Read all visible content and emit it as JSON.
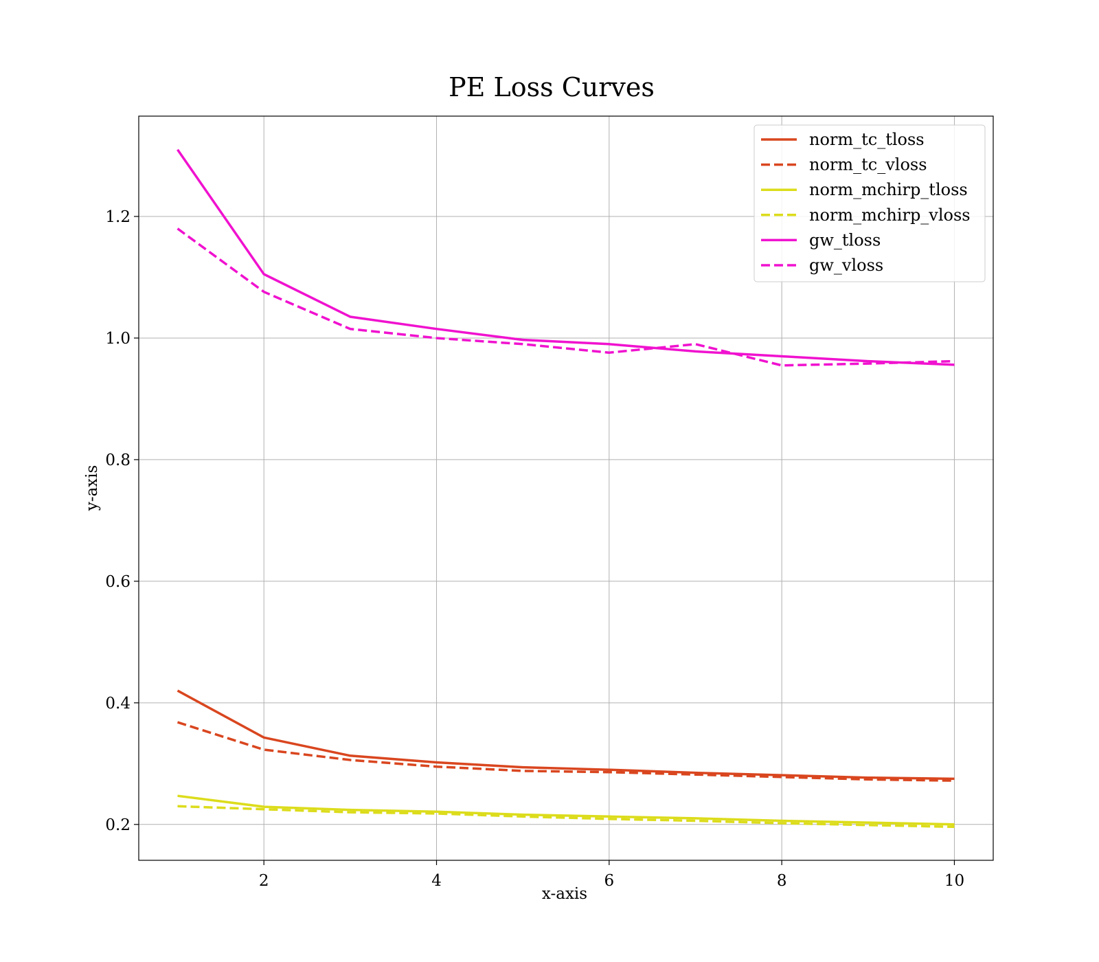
{
  "chart_data": {
    "type": "line",
    "title": "PE Loss Curves",
    "xlabel": "x-axis",
    "ylabel": "y-axis",
    "xlim": [
      0.55,
      10.45
    ],
    "ylim": [
      0.141,
      1.365
    ],
    "xticks": [
      2,
      4,
      6,
      8,
      10
    ],
    "yticks": [
      0.2,
      0.4,
      0.6,
      0.8,
      1.0,
      1.2
    ],
    "xtick_labels": [
      "2",
      "4",
      "6",
      "8",
      "10"
    ],
    "ytick_labels": [
      "0.2",
      "0.4",
      "0.6",
      "0.8",
      "1.0",
      "1.2"
    ],
    "grid": true,
    "legend_position": "top-right",
    "x": [
      1,
      2,
      3,
      4,
      5,
      6,
      7,
      8,
      9,
      10
    ],
    "series": [
      {
        "name": "norm_tc_tloss",
        "color": "#d9461f",
        "dash": "solid",
        "values": [
          0.42,
          0.343,
          0.313,
          0.302,
          0.294,
          0.29,
          0.285,
          0.281,
          0.277,
          0.275
        ]
      },
      {
        "name": "norm_tc_vloss",
        "color": "#d9461f",
        "dash": "dashed",
        "values": [
          0.368,
          0.323,
          0.306,
          0.295,
          0.288,
          0.286,
          0.282,
          0.278,
          0.274,
          0.272
        ]
      },
      {
        "name": "norm_mchirp_tloss",
        "color": "#dcdc1c",
        "dash": "solid",
        "values": [
          0.247,
          0.229,
          0.224,
          0.221,
          0.216,
          0.213,
          0.21,
          0.206,
          0.203,
          0.2
        ]
      },
      {
        "name": "norm_mchirp_vloss",
        "color": "#dcdc1c",
        "dash": "dashed",
        "values": [
          0.23,
          0.225,
          0.22,
          0.218,
          0.213,
          0.209,
          0.206,
          0.202,
          0.199,
          0.196
        ]
      },
      {
        "name": "gw_tloss",
        "color": "#f012cf",
        "dash": "solid",
        "values": [
          1.31,
          1.105,
          1.035,
          1.015,
          0.997,
          0.99,
          0.978,
          0.97,
          0.962,
          0.956
        ]
      },
      {
        "name": "gw_vloss",
        "color": "#f012cf",
        "dash": "dashed",
        "values": [
          1.18,
          1.076,
          1.015,
          1.0,
          0.99,
          0.976,
          0.99,
          0.955,
          0.958,
          0.962
        ]
      }
    ]
  }
}
